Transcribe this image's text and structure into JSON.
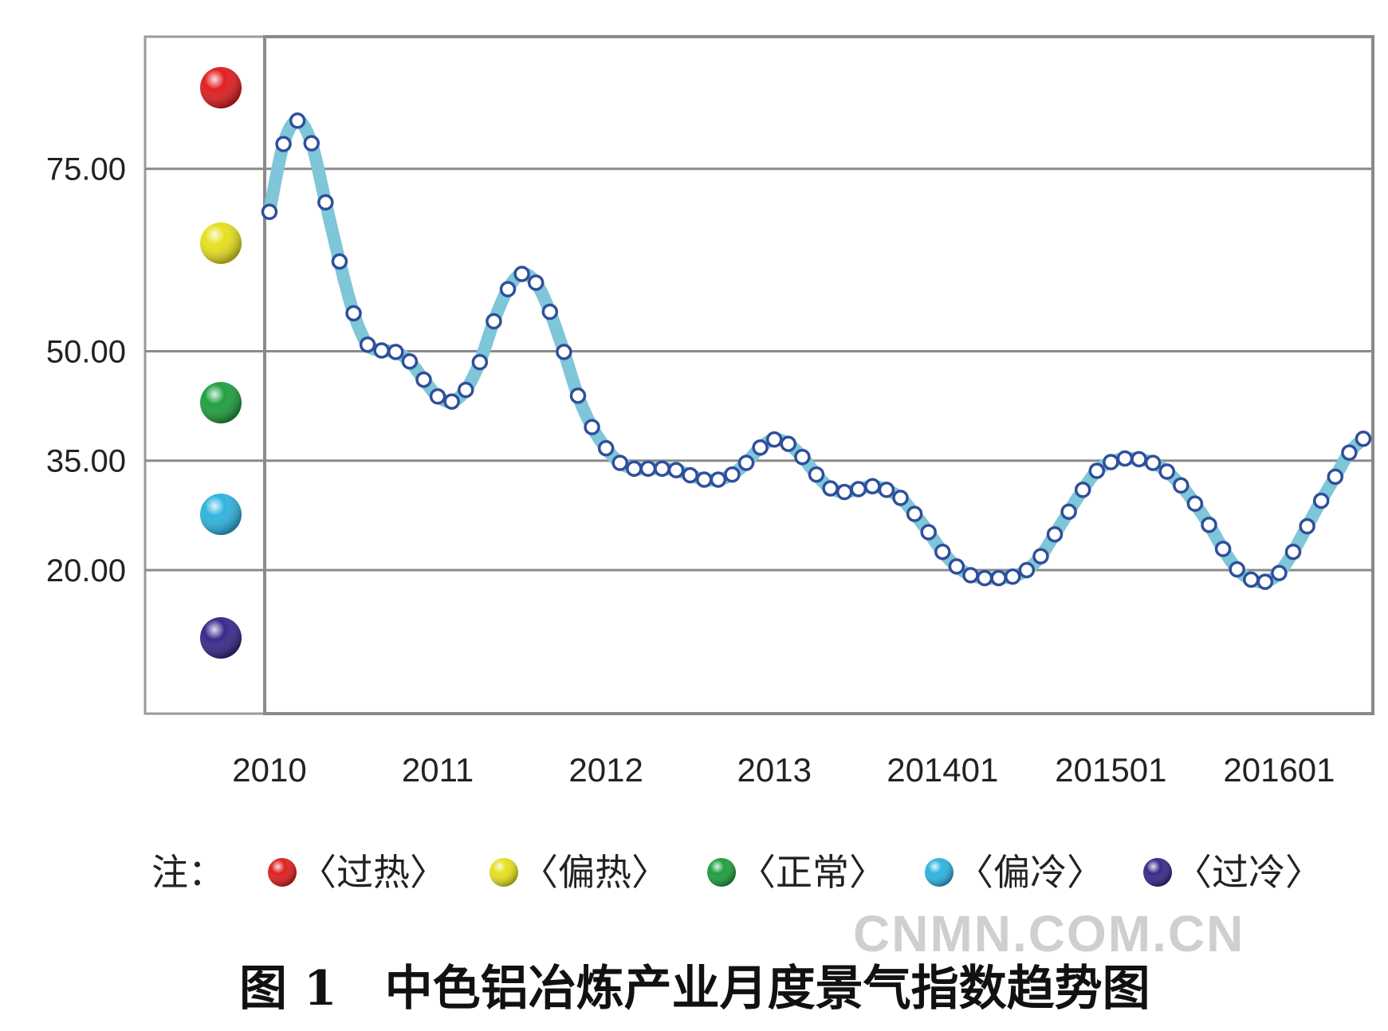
{
  "chart_data": {
    "type": "line",
    "title": "图 1　中色铝冶炼产业月度景气指数趋势图",
    "xlabel": "",
    "ylabel": "",
    "ylim": [
      0,
      93
    ],
    "yticks": [
      "75.00",
      "50.00",
      "35.00",
      "20.00"
    ],
    "ytick_values": [
      75,
      50,
      35,
      20
    ],
    "xticks": [
      "2010",
      "2011",
      "2012",
      "2013",
      "201401",
      "201501",
      "201601"
    ],
    "xtick_index": [
      0,
      12,
      24,
      36,
      48,
      60,
      72
    ],
    "grid": true,
    "line_color": "#7ec6d8",
    "marker_edge_color": "#2f4f9a",
    "series": [
      {
        "values": [
          69.1,
          78.4,
          81.6,
          78.5,
          70.4,
          62.3,
          55.2,
          50.9,
          50.1,
          49.9,
          48.6,
          46.1,
          43.8,
          43.1,
          44.7,
          48.5,
          54.1,
          58.5,
          60.6,
          59.4,
          55.4,
          49.9,
          43.9,
          39.6,
          36.7,
          34.7,
          33.9,
          33.9,
          33.9,
          33.7,
          33.0,
          32.4,
          32.4,
          33.1,
          34.7,
          36.8,
          37.9,
          37.3,
          35.5,
          33.1,
          31.2,
          30.7,
          31.1,
          31.5,
          31.0,
          29.9,
          27.7,
          25.2,
          22.5,
          20.5,
          19.3,
          18.9,
          18.9,
          19.1,
          20.0,
          21.9,
          24.9,
          28.0,
          31.0,
          33.6,
          34.8,
          35.3,
          35.2,
          34.7,
          33.5,
          31.6,
          29.1,
          26.2,
          22.9,
          20.1,
          18.7,
          18.4,
          19.6,
          22.5,
          26.0,
          29.5,
          32.8,
          36.1,
          38.0
        ]
      }
    ],
    "zones": [
      {
        "label": "过热",
        "color": "#e02020"
      },
      {
        "label": "偏热",
        "color": "#e6e020"
      },
      {
        "label": "正常",
        "color": "#20a040"
      },
      {
        "label": "偏冷",
        "color": "#30b4e0"
      },
      {
        "label": "过冷",
        "color": "#3a2a8a"
      }
    ],
    "legend_note": "注：",
    "legend_placement": "bottom"
  },
  "watermark": "CNMN.COM.CN"
}
